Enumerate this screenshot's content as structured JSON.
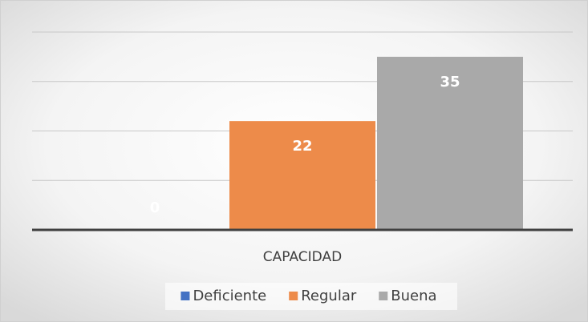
{
  "chart_data": {
    "type": "bar",
    "categories": [
      "CAPACIDAD"
    ],
    "series": [
      {
        "name": "Deficiente",
        "color": "#4472c4",
        "values": [
          0
        ]
      },
      {
        "name": "Regular",
        "color": "#ed8b4a",
        "values": [
          22
        ]
      },
      {
        "name": "Buena",
        "color": "#a9a9a9",
        "values": [
          35
        ]
      }
    ],
    "ylim": [
      0,
      40
    ],
    "yticks": [
      0,
      10,
      20,
      30,
      40
    ],
    "grid": true,
    "legend": "bottom"
  }
}
